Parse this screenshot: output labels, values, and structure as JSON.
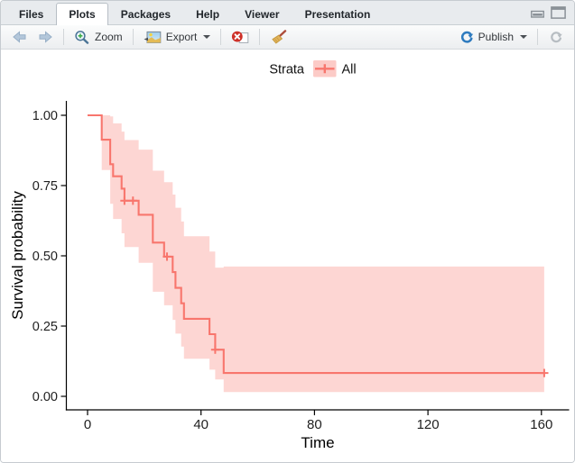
{
  "tabs": [
    {
      "label": "Files",
      "active": false
    },
    {
      "label": "Plots",
      "active": true
    },
    {
      "label": "Packages",
      "active": false
    },
    {
      "label": "Help",
      "active": false
    },
    {
      "label": "Viewer",
      "active": false
    },
    {
      "label": "Presentation",
      "active": false
    }
  ],
  "window_controls": [
    {
      "name": "minimize"
    },
    {
      "name": "maximize"
    }
  ],
  "toolbar": {
    "zoom_label": "Zoom",
    "export_label": "Export",
    "publish_label": "Publish",
    "icons": {
      "back": "back-arrow-icon",
      "forward": "forward-arrow-icon",
      "zoom": "magnifier-zoom-icon",
      "export": "image-export-icon",
      "remove_plot": "remove-plot-icon",
      "clear_all": "broom-clear-icon",
      "publish": "publish-swirl-icon",
      "refresh": "refresh-icon"
    }
  },
  "colors": {
    "curve": "#F8766D",
    "band_fill": "rgba(248,118,109,0.30)",
    "legend_key_fill": "rgba(248,118,109,0.38)",
    "axis": "#000000",
    "publish_blue": "#2E7BBF"
  },
  "chart_data": {
    "type": "line",
    "variant": "kaplan-meier-step",
    "title": "",
    "xlabel": "Time",
    "ylabel": "Survival probability",
    "xlim": [
      -8,
      169
    ],
    "ylim": [
      0,
      1.05
    ],
    "grid": false,
    "x_tick_values": [
      0,
      40,
      80,
      120,
      160
    ],
    "x_tick_labels": [
      "0",
      "40",
      "80",
      "120",
      "160"
    ],
    "y_tick_values": [
      1.0,
      0.75,
      0.5,
      0.25,
      0.0
    ],
    "y_tick_labels": [
      "1.00",
      "0.75",
      "0.50",
      "0.25",
      "0.00"
    ],
    "legend": {
      "title": "Strata",
      "position": "top",
      "entries": [
        {
          "label": "All"
        }
      ]
    },
    "series": [
      {
        "name": "All",
        "color": "#F8766D",
        "fill": "rgba(248,118,109,0.30)",
        "times": [
          0,
          5,
          8,
          9,
          12,
          13,
          18,
          23,
          27,
          30,
          31,
          33,
          34,
          43,
          45,
          48,
          161
        ],
        "survival": [
          1.0,
          0.913,
          0.826,
          0.783,
          0.739,
          0.696,
          0.646,
          0.547,
          0.497,
          0.442,
          0.386,
          0.331,
          0.276,
          0.221,
          0.166,
          0.083,
          0.083
        ],
        "ci_times": [
          5,
          8,
          9,
          12,
          13,
          18,
          23,
          27,
          30,
          31,
          33,
          34,
          43,
          45,
          48,
          161
        ],
        "ci_upper": [
          1.0,
          0.996,
          0.971,
          0.942,
          0.912,
          0.878,
          0.803,
          0.762,
          0.718,
          0.671,
          0.622,
          0.57,
          0.515,
          0.458,
          0.462,
          0.462
        ],
        "ci_lower": [
          0.805,
          0.685,
          0.631,
          0.58,
          0.531,
          0.475,
          0.372,
          0.324,
          0.272,
          0.223,
          0.177,
          0.134,
          0.095,
          0.06,
          0.015,
          0.015
        ],
        "censored": [
          {
            "time": 13,
            "surv": 0.696
          },
          {
            "time": 16,
            "surv": 0.696
          },
          {
            "time": 28,
            "surv": 0.497
          },
          {
            "time": 45,
            "surv": 0.166
          },
          {
            "time": 161,
            "surv": 0.083
          }
        ]
      }
    ]
  }
}
